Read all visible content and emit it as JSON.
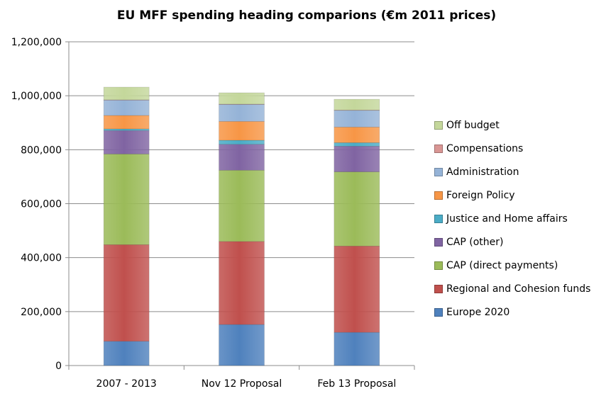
{
  "chart_data": {
    "type": "bar",
    "stacked": true,
    "title": "EU MFF spending heading comparions (€m 2011 prices)",
    "categories": [
      "2007 - 2013",
      "Nov 12 Proposal",
      "Feb 13 Proposal"
    ],
    "ylim": [
      0,
      1200000
    ],
    "yticks": [
      0,
      200000,
      400000,
      600000,
      800000,
      1000000,
      1200000
    ],
    "ytick_labels": [
      "0",
      "200,000",
      "400,000",
      "600,000",
      "800,000",
      "1,000,000",
      "1,200,000"
    ],
    "grid": true,
    "legend_position": "right",
    "series": [
      {
        "name": "Europe 2020",
        "color": "#4f81bd",
        "values": [
          90000,
          152000,
          123000
        ]
      },
      {
        "name": "Regional and Cohesion funds",
        "color": "#c0504d",
        "values": [
          358000,
          308000,
          320000
        ]
      },
      {
        "name": "CAP (direct payments)",
        "color": "#9bbb59",
        "values": [
          336000,
          264000,
          275000
        ]
      },
      {
        "name": "CAP (other)",
        "color": "#8064a2",
        "values": [
          87000,
          96000,
          95000
        ]
      },
      {
        "name": "Justice and Home affairs",
        "color": "#4bacc6",
        "values": [
          6000,
          15000,
          13000
        ]
      },
      {
        "name": "Foreign Policy",
        "color": "#f79646",
        "values": [
          50000,
          70000,
          58000
        ]
      },
      {
        "name": "Administration",
        "color": "#95b3d7",
        "values": [
          57000,
          63000,
          62000
        ]
      },
      {
        "name": "Compensations",
        "color": "#d99694",
        "values": [
          1000,
          1000,
          1000
        ]
      },
      {
        "name": "Off budget",
        "color": "#c4d79b",
        "values": [
          47000,
          42000,
          40000
        ]
      }
    ]
  }
}
